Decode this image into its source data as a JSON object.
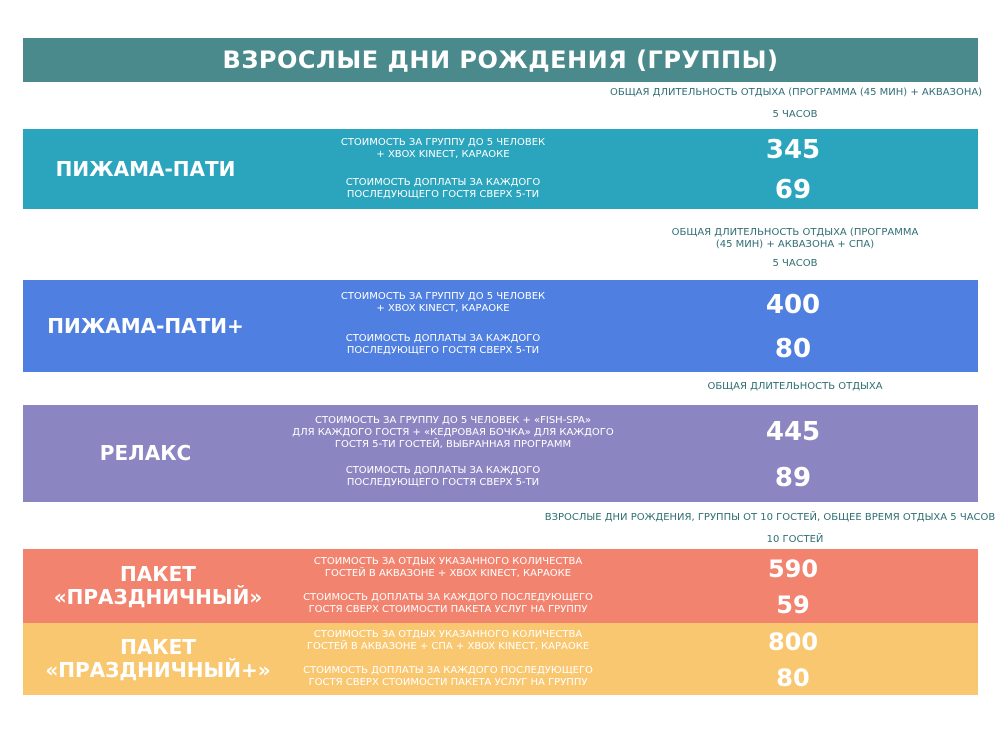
{
  "title": "ВЗРОСЛЫЕ ДНИ РОЖДЕНИЯ (ГРУППЫ)",
  "colors": {
    "title_bg": "#4b8a8c",
    "pajama_party": "#2aa5bd",
    "pajama_party_plus": "#4f7fe0",
    "relax": "#8b86c2",
    "festive": "#f2836f",
    "festive_plus": "#f9c770",
    "note_text": "#2f6f74"
  },
  "sections": [
    {
      "notes": [
        "ОБЩАЯ ДЛИТЕЛЬНОСТЬ ОТДЫХА (ПРОГРАММА (45 МИН) + АКВАЗОНА)",
        "5 ЧАСОВ"
      ],
      "name": "ПИЖАМА-ПАТИ",
      "group_desc": "СТОИМОСТЬ ЗА ГРУППУ ДО 5 ЧЕЛОВЕК\n+ XBOX KINECT, КАРАОКЕ",
      "group_price": "345",
      "extra_desc": "СТОИМОСТЬ ДОПЛАТЫ ЗА КАЖДОГО\nПОСЛЕДУЮЩЕГО ГОСТЯ СВЕРХ 5-ТИ",
      "extra_price": "69"
    },
    {
      "notes": [
        "ОБЩАЯ ДЛИТЕЛЬНОСТЬ ОТДЫХА (ПРОГРАММА\n(45 МИН) + АКВАЗОНА + СПА)",
        "5 ЧАСОВ"
      ],
      "name": "ПИЖАМА-ПАТИ+",
      "group_desc": "СТОИМОСТЬ ЗА ГРУППУ ДО 5 ЧЕЛОВЕК\n+ XBOX KINECT, КАРАОКЕ",
      "group_price": "400",
      "extra_desc": "СТОИМОСТЬ ДОПЛАТЫ ЗА КАЖДОГО\nПОСЛЕДУЮЩЕГО ГОСТЯ СВЕРХ 5-ТИ",
      "extra_price": "80"
    },
    {
      "notes": [
        "ОБЩАЯ ДЛИТЕЛЬНОСТЬ ОТДЫХА"
      ],
      "name": "РЕЛАКС",
      "group_desc": "СТОИМОСТЬ ЗА ГРУППУ ДО 5 ЧЕЛОВЕК + «FISH-SPA»\nДЛЯ КАЖДОГО ГОСТЯ + «КЕДРОВАЯ БОЧКА» ДЛЯ КАЖДОГО\nГОСТЯ 5-ТИ ГОСТЕЙ, ВЫБРАННАЯ ПРОГРАММ",
      "group_price": "445",
      "extra_desc": "СТОИМОСТЬ ДОПЛАТЫ ЗА КАЖДОГО\nПОСЛЕДУЮЩЕГО ГОСТЯ СВЕРХ 5-ТИ",
      "extra_price": "89"
    },
    {
      "notes": [
        "ВЗРОСЛЫЕ ДНИ РОЖДЕНИЯ, ГРУППЫ ОТ 10 ГОСТЕЙ, ОБЩЕЕ ВРЕМЯ ОТДЫХА 5 ЧАСОВ",
        "10 ГОСТЕЙ"
      ],
      "name": "ПАКЕТ\n«ПРАЗДНИЧНЫЙ»",
      "group_desc": "СТОИМОСТЬ ЗА ОТДЫХ УКАЗАННОГО КОЛИЧЕСТВА\nГОСТЕЙ В АКВАЗОНЕ + XBOX KINECT, КАРАОКЕ",
      "group_price": "590",
      "extra_desc": "СТОИМОСТЬ ДОПЛАТЫ ЗА КАЖДОГО ПОСЛЕДУЮЩЕГО\nГОСТЯ СВЕРХ СТОИМОСТИ ПАКЕТА УСЛУГ НА ГРУППУ",
      "extra_price": "59"
    },
    {
      "notes": [],
      "name": "ПАКЕТ\n«ПРАЗДНИЧНЫЙ+»",
      "group_desc": "СТОИМОСТЬ ЗА ОТДЫХ УКАЗАННОГО КОЛИЧЕСТВА\nГОСТЕЙ В АКВАЗОНЕ + СПА + XBOX KINECT, КАРАОКЕ",
      "group_price": "800",
      "extra_desc": "СТОИМОСТЬ ДОПЛАТЫ ЗА КАЖДОГО ПОСЛЕДУЮЩЕГО\nГОСТЯ СВЕРХ СТОИМОСТИ ПАКЕТА УСЛУГ НА ГРУППУ",
      "extra_price": "80"
    }
  ]
}
